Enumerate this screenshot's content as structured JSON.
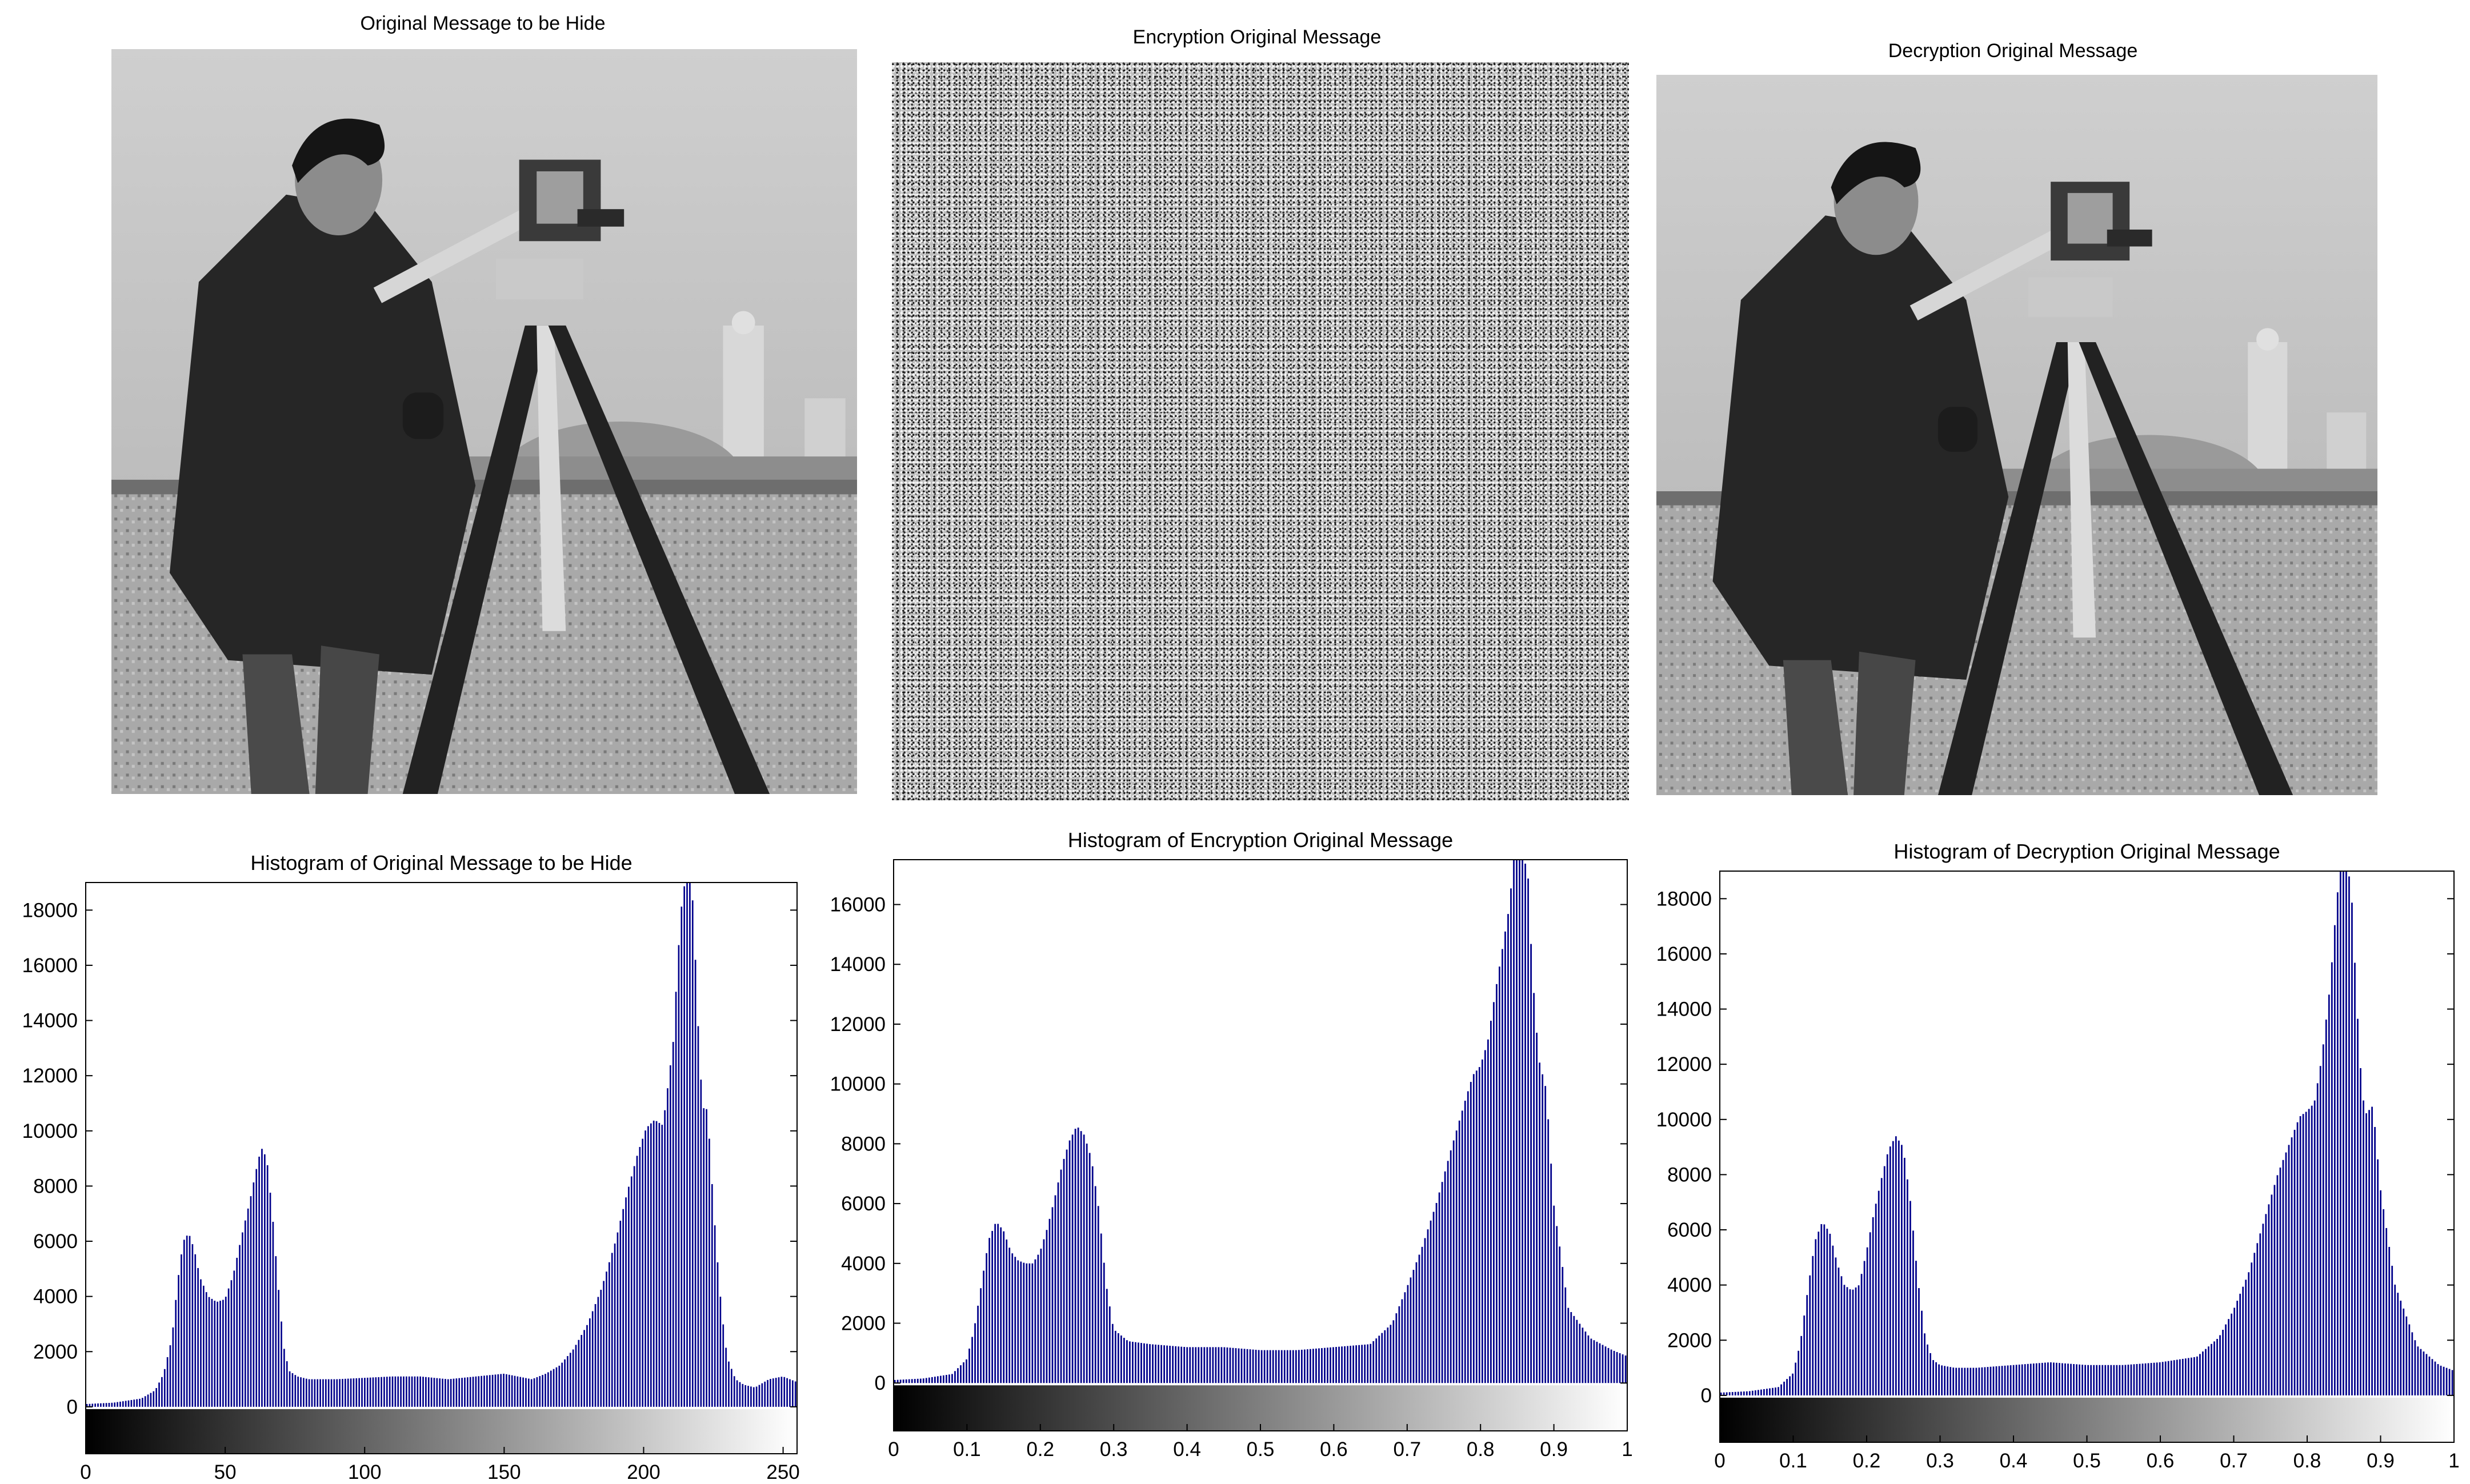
{
  "images": [
    {
      "title": "Original Message to be Hide",
      "kind": "photo"
    },
    {
      "title": "Encryption Original Message",
      "kind": "noise"
    },
    {
      "title": "Decryption Original Message",
      "kind": "photo"
    }
  ],
  "colors": {
    "bars": "#00008b",
    "axis": "#000000"
  },
  "chart_data": [
    {
      "type": "bar",
      "title": "Histogram of Original Message to be Hide",
      "xlim": [
        0,
        255
      ],
      "ylim": [
        -1700,
        19000
      ],
      "xticks": [
        0,
        50,
        100,
        150,
        200,
        250
      ],
      "yticks": [
        0,
        2000,
        4000,
        6000,
        8000,
        10000,
        12000,
        14000,
        16000,
        18000
      ],
      "colorbar": "grayscale 0-255",
      "series": [
        {
          "x": [
            0,
            10,
            20,
            25,
            28,
            31,
            33,
            35,
            37,
            39,
            41,
            44,
            47,
            50,
            53,
            56,
            59,
            61,
            63,
            65,
            67,
            69,
            71,
            73,
            76,
            80,
            90,
            100,
            110,
            120,
            130,
            140,
            150,
            160,
            165,
            170,
            175,
            180,
            185,
            190,
            194,
            198,
            201,
            204,
            207,
            209,
            211,
            212,
            213,
            214,
            215,
            216,
            217,
            218,
            219,
            220,
            221,
            222,
            223,
            224,
            226,
            228,
            230,
            233,
            236,
            240,
            245,
            250,
            255
          ],
          "values": [
            100,
            150,
            300,
            600,
            1200,
            2500,
            4500,
            6000,
            6300,
            5700,
            4700,
            4000,
            3800,
            3900,
            4800,
            6200,
            7500,
            8500,
            9400,
            9000,
            7000,
            4500,
            2200,
            1300,
            1100,
            1000,
            1000,
            1050,
            1100,
            1100,
            1000,
            1100,
            1200,
            1000,
            1200,
            1500,
            2100,
            3000,
            4300,
            6000,
            7700,
            9200,
            10100,
            10400,
            10200,
            11800,
            13500,
            15800,
            17200,
            18600,
            19000,
            19000,
            19000,
            18000,
            15200,
            13000,
            11200,
            10600,
            10900,
            9000,
            6000,
            3500,
            1800,
            1000,
            800,
            700,
            1000,
            1100,
            900
          ]
        }
      ]
    },
    {
      "type": "bar",
      "title": "Histogram of Encryption Original Message",
      "xlim": [
        0,
        1
      ],
      "ylim": [
        -1600,
        17500
      ],
      "xticks": [
        0,
        0.1,
        0.2,
        0.3,
        0.4,
        0.5,
        0.6,
        0.7,
        0.8,
        0.9,
        1
      ],
      "yticks": [
        0,
        2000,
        4000,
        6000,
        8000,
        10000,
        12000,
        14000,
        16000
      ],
      "colorbar": "grayscale 0-1",
      "series": [
        {
          "x": [
            0,
            0.04,
            0.08,
            0.1,
            0.11,
            0.12,
            0.13,
            0.14,
            0.15,
            0.16,
            0.17,
            0.18,
            0.19,
            0.2,
            0.21,
            0.22,
            0.23,
            0.24,
            0.25,
            0.26,
            0.27,
            0.28,
            0.29,
            0.3,
            0.32,
            0.35,
            0.4,
            0.45,
            0.5,
            0.55,
            0.6,
            0.65,
            0.68,
            0.7,
            0.72,
            0.74,
            0.76,
            0.78,
            0.79,
            0.8,
            0.81,
            0.82,
            0.83,
            0.84,
            0.845,
            0.85,
            0.855,
            0.86,
            0.865,
            0.87,
            0.875,
            0.88,
            0.89,
            0.9,
            0.92,
            0.95,
            0.98,
            1
          ],
          "values": [
            100,
            150,
            300,
            800,
            1800,
            3300,
            4800,
            5400,
            5100,
            4400,
            4100,
            4000,
            4000,
            4400,
            5200,
            6200,
            7300,
            8100,
            8600,
            8300,
            7500,
            5800,
            3300,
            1800,
            1400,
            1300,
            1200,
            1200,
            1100,
            1100,
            1200,
            1300,
            2000,
            3200,
            4500,
            6000,
            7800,
            9500,
            10300,
            10600,
            11400,
            13000,
            14500,
            16000,
            17500,
            17500,
            17500,
            17500,
            17000,
            14200,
            12300,
            10800,
            9800,
            6000,
            2500,
            1500,
            1100,
            900
          ]
        }
      ]
    },
    {
      "type": "bar",
      "title": "Histogram of Decryption Original Message",
      "xlim": [
        0,
        1
      ],
      "ylim": [
        -1700,
        19000
      ],
      "xticks": [
        0,
        0.1,
        0.2,
        0.3,
        0.4,
        0.5,
        0.6,
        0.7,
        0.8,
        0.9,
        1
      ],
      "yticks": [
        0,
        2000,
        4000,
        6000,
        8000,
        10000,
        12000,
        14000,
        16000,
        18000
      ],
      "colorbar": "grayscale 0-1",
      "series": [
        {
          "x": [
            0,
            0.04,
            0.08,
            0.1,
            0.11,
            0.12,
            0.13,
            0.14,
            0.15,
            0.16,
            0.17,
            0.18,
            0.19,
            0.2,
            0.21,
            0.22,
            0.23,
            0.24,
            0.25,
            0.26,
            0.27,
            0.28,
            0.29,
            0.3,
            0.32,
            0.35,
            0.4,
            0.45,
            0.5,
            0.55,
            0.6,
            0.65,
            0.68,
            0.7,
            0.72,
            0.74,
            0.76,
            0.78,
            0.79,
            0.8,
            0.81,
            0.82,
            0.83,
            0.835,
            0.84,
            0.845,
            0.85,
            0.855,
            0.86,
            0.865,
            0.87,
            0.875,
            0.88,
            0.89,
            0.9,
            0.92,
            0.95,
            0.98,
            1
          ],
          "values": [
            100,
            150,
            300,
            800,
            1900,
            3800,
            5600,
            6300,
            5900,
            4800,
            4000,
            3800,
            4000,
            5200,
            6600,
            7800,
            8900,
            9400,
            9000,
            7000,
            4200,
            2100,
            1300,
            1100,
            1000,
            1000,
            1100,
            1200,
            1100,
            1100,
            1200,
            1400,
            2100,
            3100,
            4400,
            6200,
            8000,
            9400,
            10100,
            10300,
            10600,
            12200,
            14500,
            16000,
            17800,
            19000,
            19000,
            19000,
            18600,
            15800,
            13200,
            11000,
            10200,
            10500,
            7500,
            4000,
            1800,
            1100,
            900
          ]
        }
      ]
    }
  ]
}
